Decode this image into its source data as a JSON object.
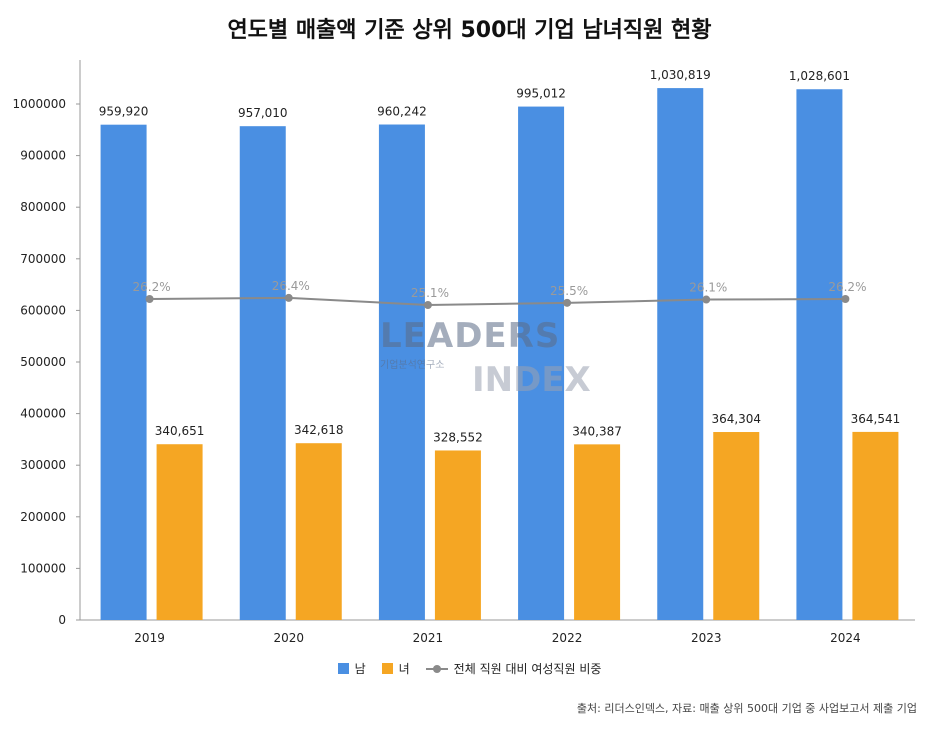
{
  "chart_data": {
    "type": "bar",
    "title": "연도별 매출액 기준 상위 500대 기업 남녀직원 현황",
    "categories": [
      "2019",
      "2020",
      "2021",
      "2022",
      "2023",
      "2024"
    ],
    "series": [
      {
        "name": "남",
        "values": [
          959920,
          957010,
          960242,
          995012,
          1030819,
          1028601
        ],
        "value_labels": [
          "959,920",
          "957,010",
          "960,242",
          "995,012",
          "1,030,819",
          "1,028,601"
        ]
      },
      {
        "name": "녀",
        "values": [
          340651,
          342618,
          328552,
          340387,
          364304,
          364541
        ],
        "value_labels": [
          "340,651",
          "342,618",
          "328,552",
          "340,387",
          "364,304",
          "364,541"
        ]
      }
    ],
    "line_series": {
      "name": "전체 직원 대비 여성직원 비중",
      "values": [
        26.2,
        26.4,
        25.1,
        25.5,
        26.1,
        26.2
      ],
      "labels": [
        "26.2%",
        "26.4%",
        "25.1%",
        "25.5%",
        "26.1%",
        "26.2%"
      ]
    },
    "ylim": [
      0,
      1080000
    ],
    "y_ticks": [
      0,
      100000,
      200000,
      300000,
      400000,
      500000,
      600000,
      700000,
      800000,
      900000,
      1000000
    ],
    "y_tick_labels": [
      "0",
      "100000",
      "200000",
      "300000",
      "400000",
      "500000",
      "600000",
      "700000",
      "800000",
      "900000",
      "1000000"
    ],
    "grid": false,
    "legend_position": "bottom"
  },
  "colors": {
    "male": "#4a8fe2",
    "female": "#f5a623",
    "line": "#8a8a8a"
  },
  "legend": {
    "male_label": "남",
    "female_label": "녀",
    "line_label": "전체 직원 대비 여성직원 비중"
  },
  "source_note": "출처: 리더스인덱스, 자료: 매출 상위 500대 기업 중 사업보고서 제출 기업",
  "watermark": {
    "line1": "LEADERS",
    "line2": "기업분석연구소",
    "line3": "INDEX"
  }
}
